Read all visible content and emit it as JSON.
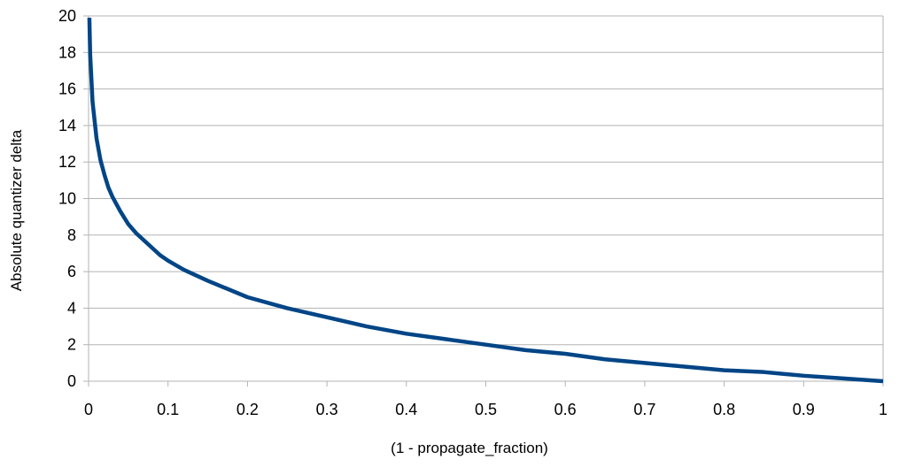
{
  "chart_data": {
    "type": "line",
    "title": "",
    "xlabel": "(1 - propagate_fraction)",
    "ylabel": "Absolute quantizer delta",
    "xlim": [
      0,
      1
    ],
    "ylim": [
      0,
      20
    ],
    "x_ticks": [
      "0",
      "0.1",
      "0.2",
      "0.3",
      "0.4",
      "0.5",
      "0.6",
      "0.7",
      "0.8",
      "0.9",
      "1"
    ],
    "y_ticks": [
      "0",
      "2",
      "4",
      "6",
      "8",
      "10",
      "12",
      "14",
      "16",
      "18",
      "20"
    ],
    "grid": "horizontal",
    "legend": "none",
    "series": [
      {
        "color": "#004586",
        "x": [
          0.001,
          0.002,
          0.005,
          0.01,
          0.015,
          0.02,
          0.025,
          0.03,
          0.04,
          0.05,
          0.06,
          0.07,
          0.08,
          0.09,
          0.1,
          0.12,
          0.15,
          0.2,
          0.25,
          0.3,
          0.35,
          0.4,
          0.45,
          0.5,
          0.55,
          0.6,
          0.65,
          0.7,
          0.75,
          0.8,
          0.85,
          0.9,
          0.95,
          1.0
        ],
        "y": [
          19.9,
          17.9,
          15.3,
          13.3,
          12.1,
          11.3,
          10.6,
          10.1,
          9.3,
          8.6,
          8.1,
          7.7,
          7.3,
          6.9,
          6.6,
          6.1,
          5.5,
          4.6,
          4.0,
          3.5,
          3.0,
          2.6,
          2.3,
          2.0,
          1.7,
          1.5,
          1.2,
          1.0,
          0.8,
          0.6,
          0.5,
          0.3,
          0.15,
          0.0
        ]
      }
    ]
  }
}
